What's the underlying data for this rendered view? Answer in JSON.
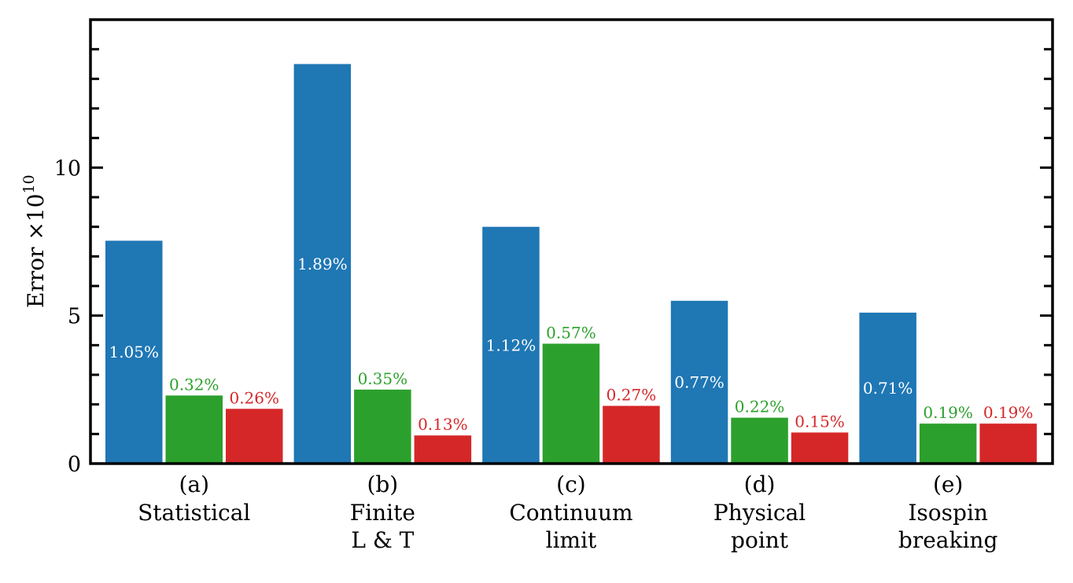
{
  "chart_data": {
    "type": "bar",
    "title": "",
    "xlabel": "",
    "ylabel": "Error ×10",
    "ylabel_exponent": "10",
    "ylim": [
      0,
      15
    ],
    "yticks_major": [
      0,
      5,
      10
    ],
    "ytick_labels": [
      "0",
      "5",
      "10"
    ],
    "yticks_minor_step": 1,
    "grid": false,
    "legend": null,
    "categories": [
      {
        "id": "(a)",
        "lines": [
          "Statistical"
        ]
      },
      {
        "id": "(b)",
        "lines": [
          "Finite",
          "L & T"
        ]
      },
      {
        "id": "(c)",
        "lines": [
          "Continuum",
          "limit"
        ]
      },
      {
        "id": "(d)",
        "lines": [
          "Physical",
          "point"
        ]
      },
      {
        "id": "(e)",
        "lines": [
          "Isospin",
          "breaking"
        ]
      }
    ],
    "series": [
      {
        "name": "blue",
        "color": "#1f77b4",
        "label_color": "#ffffff",
        "label_position": "inside",
        "values": [
          7.53,
          13.5,
          8.0,
          5.5,
          5.1
        ],
        "labels": [
          "1.05%",
          "1.89%",
          "1.12%",
          "0.77%",
          "0.71%"
        ]
      },
      {
        "name": "green",
        "color": "#2ca02c",
        "label_color": "#2ca02c",
        "label_position": "above",
        "values": [
          2.3,
          2.5,
          4.05,
          1.55,
          1.35
        ],
        "labels": [
          "0.32%",
          "0.35%",
          "0.57%",
          "0.22%",
          "0.19%"
        ]
      },
      {
        "name": "red",
        "color": "#d62728",
        "label_color": "#d62728",
        "label_position": "above",
        "values": [
          1.85,
          0.95,
          1.95,
          1.05,
          1.35
        ],
        "labels": [
          "0.26%",
          "0.13%",
          "0.27%",
          "0.15%",
          "0.19%"
        ]
      }
    ]
  }
}
